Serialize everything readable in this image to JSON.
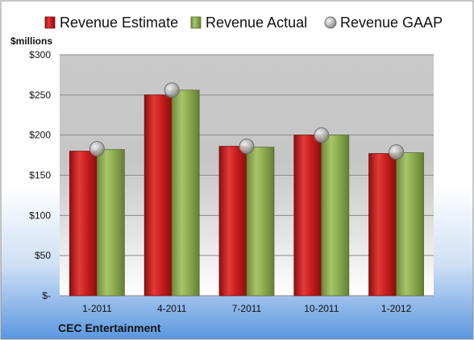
{
  "chart_data": {
    "type": "bar",
    "categories": [
      "1-2011",
      "4-2011",
      "7-2011",
      "10-2011",
      "1-2012"
    ],
    "series": [
      {
        "name": "Revenue Estimate",
        "type": "bar",
        "color": "#cc1f1f",
        "values": [
          180,
          250,
          186,
          200,
          177
        ]
      },
      {
        "name": "Revenue Actual",
        "type": "bar",
        "color": "#8fae52",
        "values": [
          182,
          256,
          185,
          200,
          178
        ]
      },
      {
        "name": "Revenue GAAP",
        "type": "marker",
        "color": "#b5b5b5",
        "values": [
          183,
          256,
          186,
          200,
          179
        ]
      }
    ],
    "ylabel": "$millions",
    "ylim": [
      0,
      300
    ],
    "yticks": [
      0,
      50,
      100,
      150,
      200,
      250,
      300
    ],
    "ytick_labels": [
      "$-",
      "$50",
      "$100",
      "$150",
      "$200",
      "$250",
      "$300"
    ],
    "grid": true,
    "legend_position": "top",
    "company": "CEC Entertainment"
  }
}
